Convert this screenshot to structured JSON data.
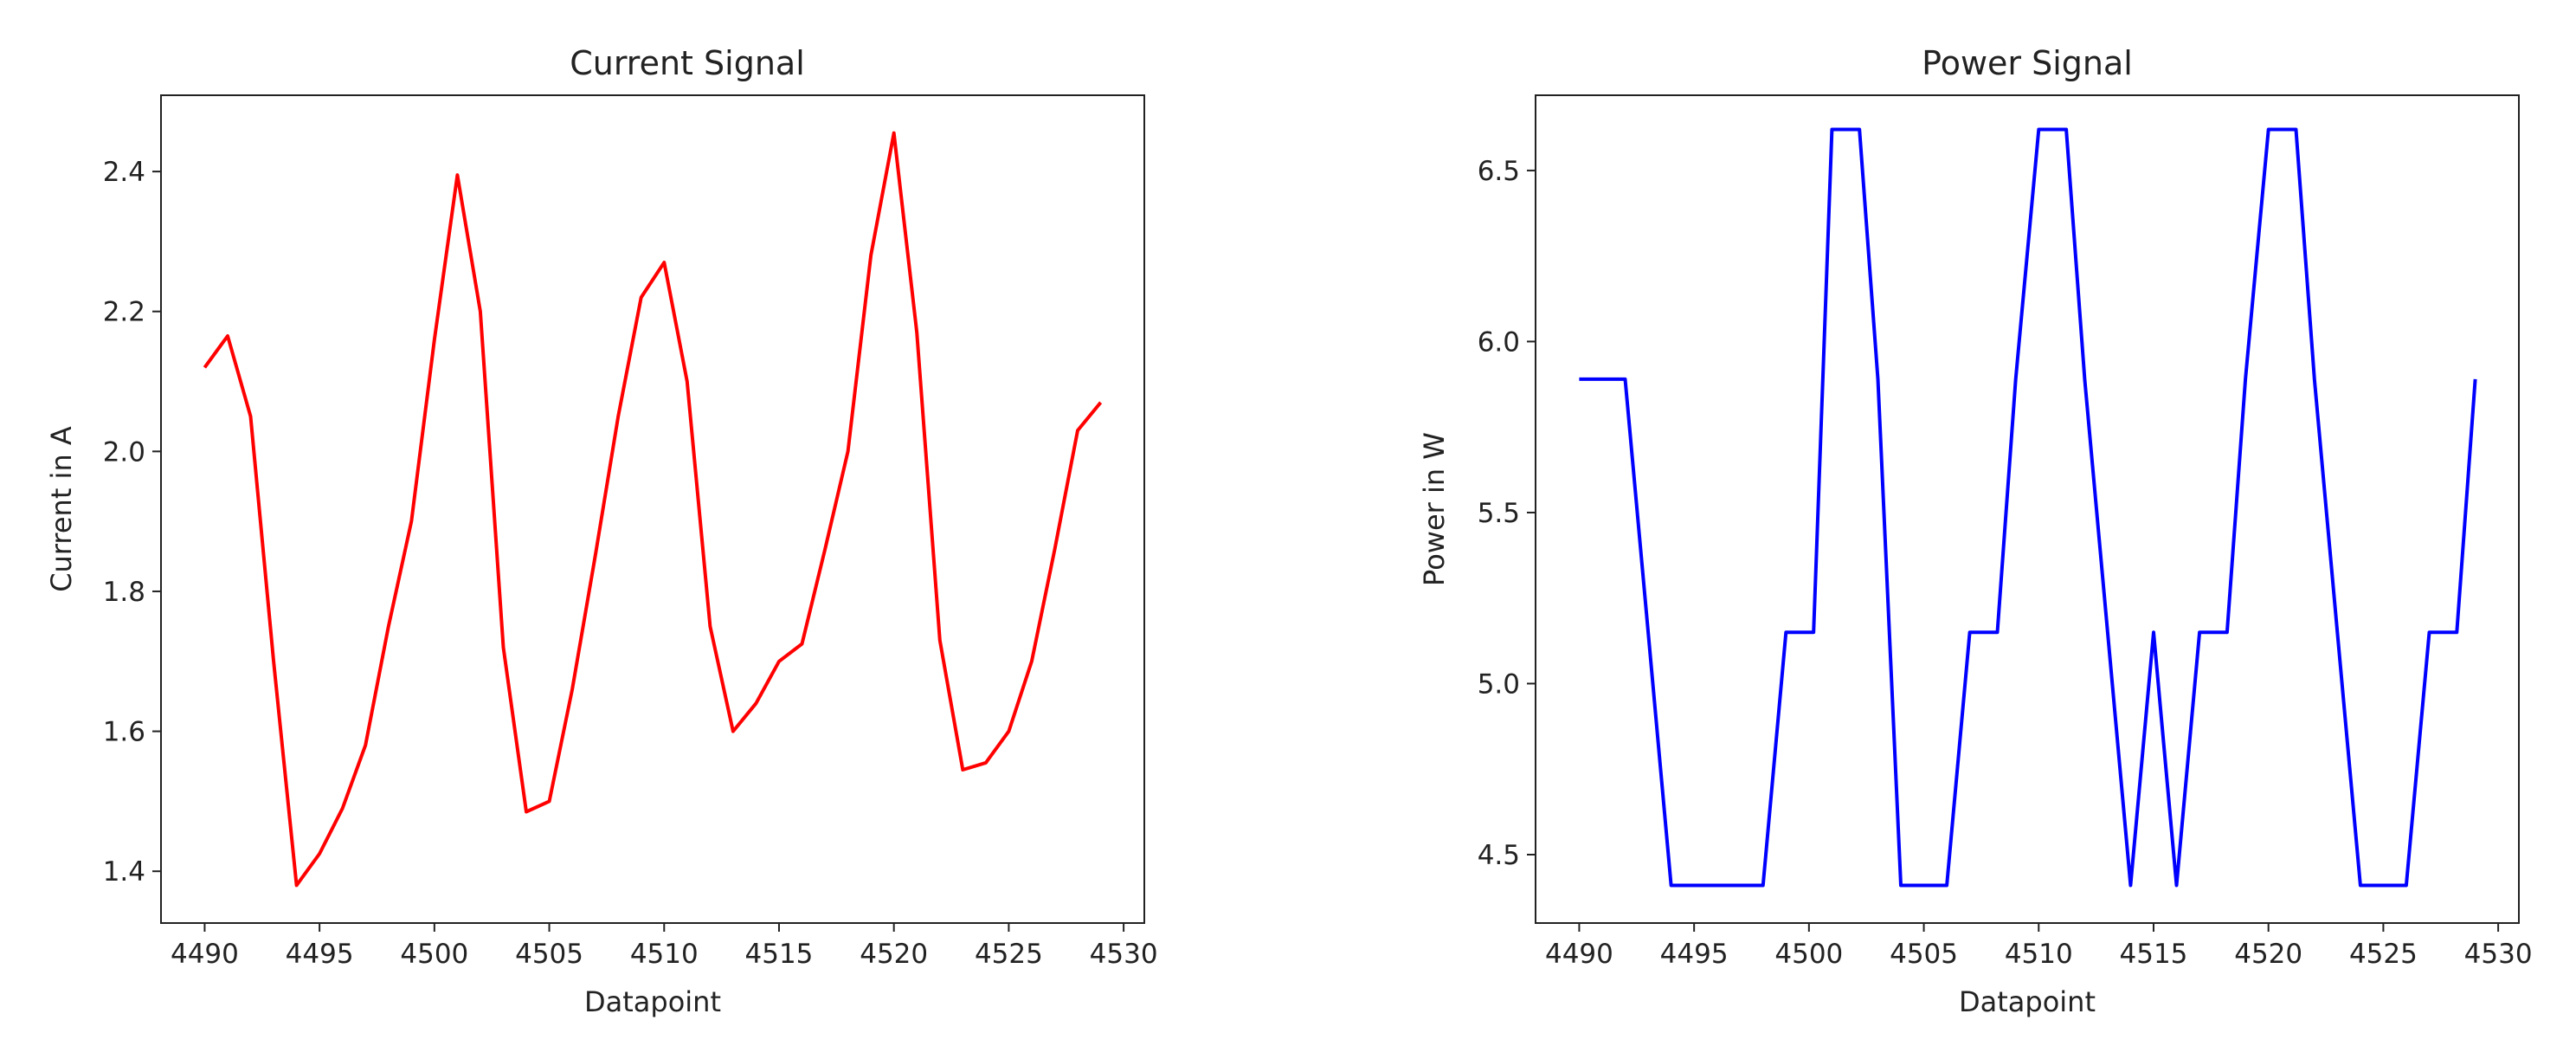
{
  "chart_data": [
    {
      "type": "line",
      "title": "Current Signal",
      "xlabel": "Datapoint",
      "ylabel": "Current in A",
      "xlim": [
        4488.1,
        4530.9
      ],
      "ylim": [
        1.326,
        2.509
      ],
      "xticks": [
        4490,
        4495,
        4500,
        4505,
        4510,
        4515,
        4520,
        4525,
        4530
      ],
      "yticks": [
        1.4,
        1.6,
        1.8,
        2.0,
        2.2,
        2.4
      ],
      "ytick_labels": [
        "1.4",
        "1.6",
        "1.8",
        "2.0",
        "2.2",
        "2.4"
      ],
      "grid": false,
      "series": [
        {
          "color": "#ff0000",
          "x": [
            4490,
            4491,
            4492,
            4493,
            4494,
            4495,
            4496,
            4497,
            4498,
            4499,
            4500,
            4501,
            4502,
            4503,
            4504,
            4505,
            4506,
            4507,
            4508,
            4509,
            4510,
            4511,
            4512,
            4513,
            4514,
            4515,
            4516,
            4517,
            4518,
            4519,
            4520,
            4521,
            4522,
            4523,
            4524,
            4525,
            4526,
            4527,
            4528,
            4529
          ],
          "values": [
            2.12,
            2.165,
            2.05,
            1.7,
            1.38,
            1.425,
            1.49,
            1.58,
            1.75,
            1.9,
            2.16,
            2.395,
            2.2,
            1.72,
            1.485,
            1.5,
            1.66,
            1.85,
            2.05,
            2.22,
            2.27,
            2.1,
            1.75,
            1.6,
            1.64,
            1.7,
            1.725,
            1.86,
            2.0,
            2.28,
            2.455,
            2.17,
            1.73,
            1.545,
            1.555,
            1.6,
            1.7,
            1.86,
            2.03,
            2.07
          ]
        }
      ]
    },
    {
      "type": "line",
      "title": "Power Signal",
      "xlabel": "Datapoint",
      "ylabel": "Power in W",
      "xlim": [
        4488.1,
        4530.9
      ],
      "ylim": [
        4.3,
        6.72
      ],
      "xticks": [
        4490,
        4495,
        4500,
        4505,
        4510,
        4515,
        4520,
        4525,
        4530
      ],
      "yticks": [
        4.5,
        5.0,
        5.5,
        6.0,
        6.5
      ],
      "ytick_labels": [
        "4.5",
        "5.0",
        "5.5",
        "6.0",
        "6.5"
      ],
      "grid": false,
      "series": [
        {
          "color": "#0000ff",
          "x": [
            4490,
            4491,
            4492,
            4493,
            4494,
            4495,
            4496,
            4497,
            4498,
            4499,
            4499.8,
            4500.2,
            4501,
            4501.8,
            4502.2,
            4503,
            4504,
            4505,
            4506,
            4507,
            4507.8,
            4508.2,
            4509,
            4510,
            4510.8,
            4511.2,
            4512,
            4513,
            4514,
            4515,
            4516,
            4517,
            4517.8,
            4518.2,
            4519,
            4520,
            4520.8,
            4521.2,
            4522,
            4523,
            4524,
            4525,
            4526,
            4527,
            4527.8,
            4528.2,
            4529
          ],
          "values": [
            5.89,
            5.89,
            5.89,
            5.15,
            4.41,
            4.41,
            4.41,
            4.41,
            4.41,
            5.15,
            5.15,
            5.15,
            6.62,
            6.62,
            6.62,
            5.89,
            4.41,
            4.41,
            4.41,
            5.15,
            5.15,
            5.15,
            5.89,
            6.62,
            6.62,
            6.62,
            5.89,
            5.15,
            4.41,
            5.15,
            4.41,
            5.15,
            5.15,
            5.15,
            5.89,
            6.62,
            6.62,
            6.62,
            5.89,
            5.15,
            4.41,
            4.41,
            4.41,
            5.15,
            5.15,
            5.15,
            5.89
          ]
        }
      ]
    }
  ]
}
